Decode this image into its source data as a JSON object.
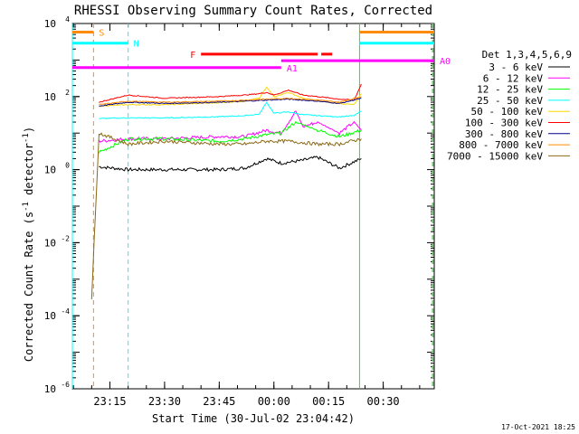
{
  "chart_data": {
    "type": "line",
    "title": "RHESSI Observing Summary Count Rates, Corrected",
    "xlabel": "Start Time (30-Jul-02 23:04:42)",
    "ylabel": "Corrected Count Rate (s-1 detector-1)",
    "ylabel_parts": {
      "pre": "Corrected Count Rate (s",
      "sup1": "-1",
      "mid": " detector",
      "sup2": "-1",
      "post": ")"
    },
    "y_scale": "log",
    "ylim": [
      1e-06,
      10000.0
    ],
    "y_ticks": [
      {
        "value": 10000.0,
        "base": "10",
        "exp": "4"
      },
      {
        "value": 100.0,
        "base": "10",
        "exp": "2"
      },
      {
        "value": 1.0,
        "base": "10",
        "exp": "0"
      },
      {
        "value": 0.01,
        "base": "10",
        "exp": "-2"
      },
      {
        "value": 0.0001,
        "base": "10",
        "exp": "-4"
      },
      {
        "value": 1e-06,
        "base": "10",
        "exp": "-6"
      }
    ],
    "xlim": [
      "23:04:42",
      "00:44:00"
    ],
    "x_ticks": [
      "23:15",
      "23:30",
      "23:45",
      "00:00",
      "00:15",
      "00:30"
    ],
    "legend_title": "Det 1,3,4,5,6,9",
    "legend_position": "right",
    "timestamp": "17-Oct-2021 18:25",
    "series": [
      {
        "name": "3 - 6 keV",
        "color": "#000000",
        "x": [
          "23:12:00",
          "23:20:00",
          "23:30:00",
          "23:45:00",
          "23:52:00",
          "23:58:00",
          "00:02:00",
          "00:08:00",
          "00:12:00",
          "00:18:00",
          "00:24:00"
        ],
        "y": [
          1.2,
          1.0,
          1.0,
          1.0,
          1.1,
          2.0,
          1.5,
          1.8,
          2.2,
          1.1,
          2.0
        ]
      },
      {
        "name": "6 - 12 keV",
        "color": "#ff00ff",
        "x": [
          "23:12:00",
          "23:20:00",
          "23:30:00",
          "23:45:00",
          "23:52:00",
          "23:58:00",
          "00:02:00",
          "00:06:00",
          "00:08:00",
          "00:12:00",
          "00:18:00",
          "00:22:00",
          "00:24:00"
        ],
        "y": [
          6,
          7,
          7,
          8,
          8,
          12,
          10,
          40,
          15,
          20,
          10,
          20,
          12
        ]
      },
      {
        "name": "12 - 25 keV",
        "color": "#00ff00",
        "x": [
          "23:12:00",
          "23:20:00",
          "23:30:00",
          "23:45:00",
          "23:52:00",
          "23:58:00",
          "00:02:00",
          "00:06:00",
          "00:12:00",
          "00:18:00",
          "00:24:00"
        ],
        "y": [
          3,
          7,
          7,
          6,
          7,
          9,
          10,
          20,
          12,
          8,
          12
        ]
      },
      {
        "name": "25 - 50 keV",
        "color": "#00ffff",
        "x": [
          "23:12:00",
          "23:20:00",
          "23:30:00",
          "23:45:00",
          "23:52:00",
          "23:56:00",
          "23:58:00",
          "00:00:00",
          "00:04:00",
          "00:08:00",
          "00:12:00",
          "00:18:00",
          "00:22:00",
          "00:24:00"
        ],
        "y": [
          25,
          26,
          26,
          28,
          30,
          33,
          70,
          35,
          38,
          32,
          30,
          28,
          30,
          40
        ]
      },
      {
        "name": "50 - 100 keV",
        "color": "#ffd700",
        "x": [
          "23:12:00",
          "23:20:00",
          "23:30:00",
          "23:45:00",
          "23:52:00",
          "23:56:00",
          "23:58:00",
          "00:00:00",
          "00:04:00",
          "00:08:00",
          "00:12:00",
          "00:18:00",
          "00:22:00",
          "00:24:00"
        ],
        "y": [
          55,
          60,
          60,
          68,
          75,
          90,
          180,
          100,
          130,
          90,
          75,
          65,
          60,
          120
        ]
      },
      {
        "name": "100 - 300 keV",
        "color": "#ff0000",
        "x": [
          "23:12:00",
          "23:20:00",
          "23:30:00",
          "23:45:00",
          "23:52:00",
          "23:56:00",
          "23:58:00",
          "00:00:00",
          "00:04:00",
          "00:08:00",
          "00:12:00",
          "00:18:00",
          "00:22:00",
          "00:24:00"
        ],
        "y": [
          70,
          110,
          90,
          100,
          110,
          120,
          130,
          110,
          150,
          110,
          100,
          85,
          80,
          220
        ]
      },
      {
        "name": "300 - 800 keV",
        "color": "#00008b",
        "x": [
          "23:12:00",
          "23:20:00",
          "23:30:00",
          "23:45:00",
          "23:52:00",
          "23:58:00",
          "00:04:00",
          "00:12:00",
          "00:18:00",
          "00:24:00"
        ],
        "y": [
          55,
          70,
          65,
          70,
          75,
          80,
          85,
          75,
          65,
          90
        ]
      },
      {
        "name": "800 - 7000 keV",
        "color": "#ff8c00",
        "x": [
          "23:12:00",
          "23:20:00",
          "23:30:00",
          "23:45:00",
          "23:52:00",
          "23:58:00",
          "00:04:00",
          "00:12:00",
          "00:18:00",
          "00:24:00"
        ],
        "y": [
          60,
          75,
          70,
          75,
          80,
          85,
          90,
          80,
          70,
          100
        ]
      },
      {
        "name": "7000 - 15000 keV",
        "color": "#8b6914",
        "x": [
          "23:10:00",
          "23:12:00",
          "23:20:00",
          "23:30:00",
          "23:45:00",
          "23:52:00",
          "23:58:00",
          "00:04:00",
          "00:12:00",
          "00:18:00",
          "00:24:00"
        ],
        "y": [
          0.0003,
          10,
          5,
          6,
          5,
          5,
          6,
          6,
          5,
          5,
          7
        ]
      }
    ],
    "flags": [
      {
        "label": "S",
        "color": "#ff8c00",
        "segments": [
          [
            "23:04:42",
            "23:10:30"
          ],
          [
            "00:23:30",
            "00:44:00"
          ]
        ],
        "level": 5800
      },
      {
        "label": "N",
        "color": "#00ffff",
        "segments": [
          [
            "23:04:42",
            "23:20:00"
          ],
          [
            "00:23:30",
            "00:44:00"
          ]
        ],
        "level": 2900
      },
      {
        "label": "F",
        "color": "#ff0000",
        "segments": [
          [
            "23:40:00",
            "00:12:00"
          ],
          [
            "00:13:00",
            "00:16:00"
          ]
        ],
        "level": 1450
      },
      {
        "label": "A0",
        "color": "#ff00ff",
        "segments": [
          [
            "00:02:00",
            "00:44:00"
          ]
        ],
        "level": 960
      },
      {
        "label": "A1",
        "color": "#ff00ff",
        "segments": [
          [
            "23:04:42",
            "00:02:00"
          ]
        ],
        "level": 620
      }
    ],
    "vertical_lines": [
      {
        "time": "23:04:42",
        "color": "#00ffff",
        "style": "solid"
      },
      {
        "time": "23:10:30",
        "color": "#ff8c00",
        "style": "dashed"
      },
      {
        "time": "23:20:00",
        "color": "#00ffff",
        "style": "dashed"
      },
      {
        "time": "00:23:30",
        "color": "#00ff00",
        "style": "solid"
      },
      {
        "time": "00:43:30",
        "color": "#ff8c00",
        "style": "dashed"
      },
      {
        "time": "00:44:00",
        "color": "#00ffff",
        "style": "dashed"
      }
    ]
  }
}
